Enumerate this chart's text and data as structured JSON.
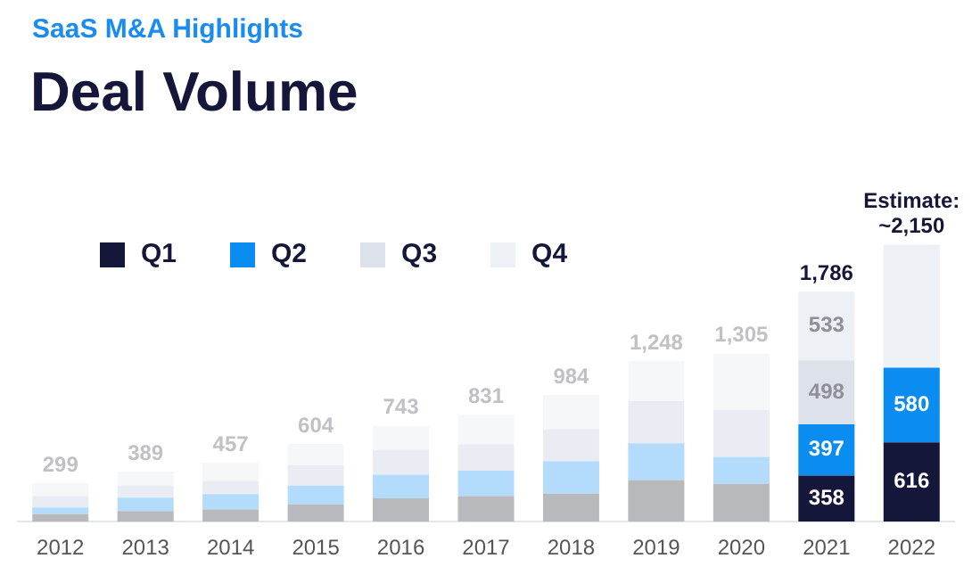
{
  "chart_data": {
    "type": "bar",
    "title": "Deal Volume",
    "subtitle": "SaaS M&A Highlights",
    "categories": [
      "2012",
      "2013",
      "2014",
      "2015",
      "2016",
      "2017",
      "2018",
      "2019",
      "2020",
      "2021",
      "2022"
    ],
    "stacked": true,
    "legend": "top left",
    "grid": false,
    "series": [
      {
        "name": "Q1",
        "color": "#15173a",
        "values": [
          59,
          83,
          95,
          134,
          182,
          198,
          217,
          324,
          293,
          358,
          616
        ],
        "colors": [
          "#b8b9bd",
          "#b8b9bd",
          "#b8b9bd",
          "#b8b9bd",
          "#b8b9bd",
          "#b8b9bd",
          "#b8b9bd",
          "#b8b9bd",
          "#b8b9bd",
          "#15173a",
          "#15173a"
        ],
        "value_labels": [
          null,
          null,
          null,
          null,
          null,
          null,
          null,
          null,
          null,
          "358",
          "616"
        ]
      },
      {
        "name": "Q2",
        "color": "#0a8cf0",
        "values": [
          51,
          103,
          119,
          146,
          182,
          198,
          253,
          285,
          210,
          397,
          580
        ],
        "colors": [
          "#b3dbfb",
          "#b3dbfb",
          "#b3dbfb",
          "#b3dbfb",
          "#b3dbfb",
          "#b3dbfb",
          "#b3dbfb",
          "#b3dbfb",
          "#b3dbfb",
          "#0a8cf0",
          "#0a8cf0"
        ],
        "value_labels": [
          null,
          null,
          null,
          null,
          null,
          null,
          null,
          null,
          null,
          "397",
          "580"
        ]
      },
      {
        "name": "Q3",
        "color": "#dde2ea",
        "values": [
          91,
          95,
          103,
          158,
          194,
          206,
          249,
          329,
          364,
          498,
          null
        ],
        "colors": [
          "#e9edf3",
          "#e9edf3",
          "#e9edf3",
          "#e9edf3",
          "#e9edf3",
          "#e9edf3",
          "#e9edf3",
          "#e9edf3",
          "#e9edf3",
          "#dde2ea",
          "#dde2ea"
        ],
        "value_labels": [
          null,
          null,
          null,
          null,
          null,
          null,
          null,
          null,
          null,
          "498",
          null
        ]
      },
      {
        "name": "Q4",
        "color": "#edf0f5",
        "values": [
          98,
          108,
          140,
          166,
          185,
          229,
          265,
          310,
          438,
          533,
          954
        ],
        "colors": [
          "#f6f7f9",
          "#f6f7f9",
          "#f6f7f9",
          "#f6f7f9",
          "#f6f7f9",
          "#f6f7f9",
          "#f6f7f9",
          "#f6f7f9",
          "#f6f7f9",
          "#edf0f5",
          "#edf0f5"
        ],
        "value_labels": [
          null,
          null,
          null,
          null,
          null,
          null,
          null,
          null,
          null,
          "533",
          null
        ]
      }
    ],
    "totals": [
      "299",
      "389",
      "457",
      "604",
      "743",
      "831",
      "984",
      "1,248",
      "1,305",
      "1,786",
      "Estimate: ~2,150"
    ]
  }
}
